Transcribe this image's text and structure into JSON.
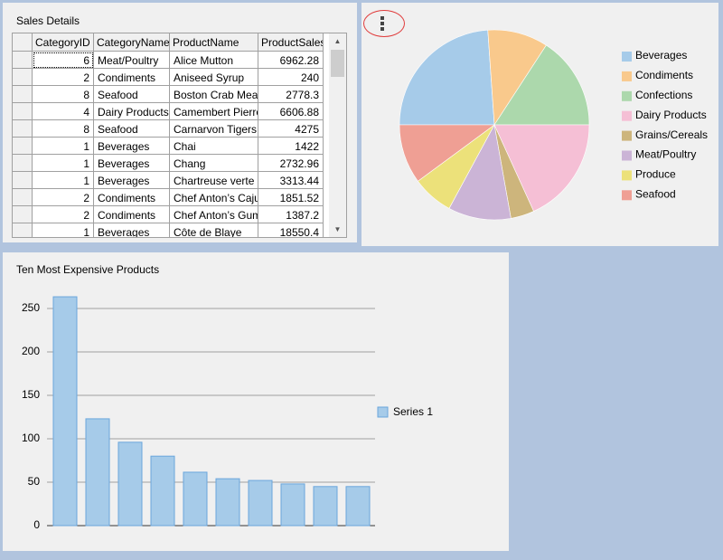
{
  "sales_details": {
    "title": "Sales Details",
    "columns": [
      "CategoryID",
      "CategoryName",
      "ProductName",
      "ProductSales"
    ],
    "rows": [
      [
        6,
        "Meat/Poultry",
        "Alice Mutton",
        6962.28
      ],
      [
        2,
        "Condiments",
        "Aniseed Syrup",
        240
      ],
      [
        8,
        "Seafood",
        "Boston Crab Meat",
        2778.3
      ],
      [
        4,
        "Dairy Products",
        "Camembert Pierrot",
        6606.88
      ],
      [
        8,
        "Seafood",
        "Carnarvon Tigers",
        4275
      ],
      [
        1,
        "Beverages",
        "Chai",
        1422
      ],
      [
        1,
        "Beverages",
        "Chang",
        2732.96
      ],
      [
        1,
        "Beverages",
        "Chartreuse verte",
        3313.44
      ],
      [
        2,
        "Condiments",
        "Chef Anton’s Cajun",
        1851.52
      ],
      [
        2,
        "Condiments",
        "Chef Anton’s Gumb",
        1387.2
      ],
      [
        1,
        "Beverages",
        "Côte de Blaye",
        18550.4
      ]
    ]
  },
  "chart_data": [
    {
      "type": "pie",
      "categories": [
        "Beverages",
        "Condiments",
        "Confections",
        "Dairy Products",
        "Grains/Cereals",
        "Meat/Poultry",
        "Produce",
        "Seafood"
      ],
      "values": [
        23.9,
        10.3,
        15.8,
        18.2,
        4.0,
        10.7,
        7.0,
        10.1
      ],
      "colors": [
        "#a6cbe9",
        "#f9c98c",
        "#acd8ac",
        "#f5bfd5",
        "#cdb57c",
        "#cbb4d6",
        "#ece17a",
        "#ef9f94"
      ]
    },
    {
      "type": "bar",
      "title": "Ten Most Expensive Products",
      "categories": [
        null,
        null,
        null,
        null,
        null,
        null,
        null,
        null,
        null,
        null
      ],
      "series": [
        {
          "name": "Series 1",
          "color": "#a6cbe9",
          "values": [
            263.5,
            123,
            96,
            80,
            61.5,
            54,
            52,
            48,
            45,
            45
          ]
        }
      ],
      "ylim": [
        0,
        270
      ],
      "yticks": [
        0,
        50,
        100,
        150,
        200,
        250
      ],
      "grid": true
    }
  ]
}
